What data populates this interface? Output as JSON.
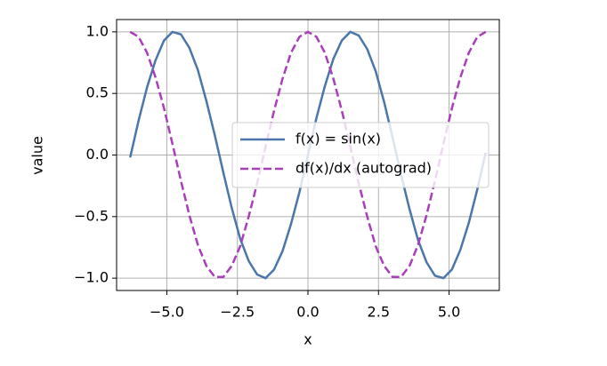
{
  "chart_data": {
    "type": "line",
    "xlabel": "x",
    "ylabel": "value",
    "x": [
      -6.3,
      -6.0,
      -5.7,
      -5.4,
      -5.1,
      -4.8,
      -4.5,
      -4.2,
      -3.9,
      -3.6,
      -3.3,
      -3.0,
      -2.7,
      -2.4,
      -2.1,
      -1.8,
      -1.5,
      -1.2,
      -0.9,
      -0.6,
      -0.3,
      0,
      0.3,
      0.6,
      0.9,
      1.2,
      1.5,
      1.8,
      2.1,
      2.4,
      2.7,
      3.0,
      3.3,
      3.6,
      3.9,
      4.2,
      4.5,
      4.8,
      5.1,
      5.4,
      5.7,
      6.0,
      6.3
    ],
    "series": [
      {
        "name": "f(x) = sin(x)",
        "color": "#4a76aa",
        "linestyle": "solid",
        "values": [
          -0.02,
          0.28,
          0.55,
          0.77,
          0.93,
          1.0,
          0.98,
          0.87,
          0.69,
          0.44,
          0.16,
          -0.14,
          -0.43,
          -0.68,
          -0.86,
          -0.97,
          -1.0,
          -0.93,
          -0.78,
          -0.56,
          -0.3,
          0,
          0.3,
          0.56,
          0.78,
          0.93,
          1.0,
          0.97,
          0.86,
          0.68,
          0.43,
          0.14,
          -0.16,
          -0.44,
          -0.69,
          -0.87,
          -0.98,
          -1.0,
          -0.93,
          -0.77,
          -0.55,
          -0.28,
          0.02
        ]
      },
      {
        "name": "df(x)/dx (autograd)",
        "color": "#a93fb8",
        "linestyle": "dashed",
        "values": [
          1.0,
          0.96,
          0.83,
          0.63,
          0.38,
          0.09,
          -0.21,
          -0.49,
          -0.73,
          -0.9,
          -0.99,
          -0.99,
          -0.9,
          -0.74,
          -0.5,
          -0.23,
          0.07,
          0.36,
          0.62,
          0.83,
          0.96,
          1,
          0.96,
          0.83,
          0.62,
          0.36,
          0.07,
          -0.23,
          -0.5,
          -0.74,
          -0.9,
          -0.99,
          -0.99,
          -0.9,
          -0.73,
          -0.49,
          -0.21,
          0.09,
          0.38,
          0.63,
          0.83,
          0.96,
          1.0
        ]
      }
    ],
    "xlim": [
      -6.78,
      6.78
    ],
    "ylim": [
      -1.1,
      1.1
    ],
    "xticks": [
      {
        "value": -5,
        "label": "−5.0"
      },
      {
        "value": -2.5,
        "label": "−2.5"
      },
      {
        "value": 0,
        "label": "0.0"
      },
      {
        "value": 2.5,
        "label": "2.5"
      },
      {
        "value": 5,
        "label": "5.0"
      }
    ],
    "yticks": [
      {
        "value": -1,
        "label": "−1.0"
      },
      {
        "value": -0.5,
        "label": "−0.5"
      },
      {
        "value": 0,
        "label": "0.0"
      },
      {
        "value": 0.5,
        "label": "0.5"
      },
      {
        "value": 1,
        "label": "1.0"
      }
    ],
    "grid": true,
    "legend": "center right"
  }
}
